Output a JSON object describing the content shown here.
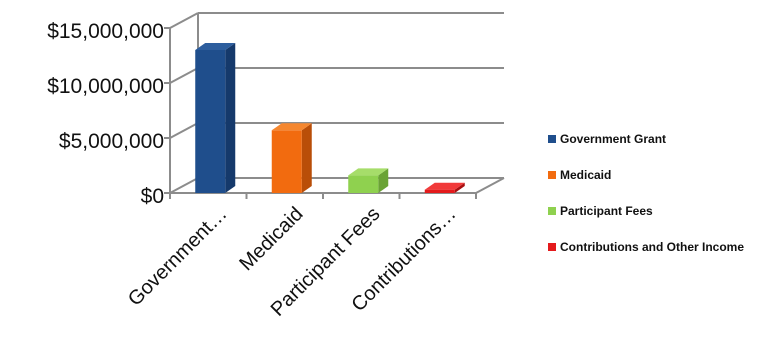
{
  "chart_data": {
    "type": "bar",
    "title": "",
    "xlabel": "",
    "ylabel": "",
    "categories": [
      "Government…",
      "Medicaid",
      "Participant Fees",
      "Contributions…"
    ],
    "series_names": [
      "Government Grant",
      "Medicaid",
      "Participant Fees",
      "Contributions and Other Income"
    ],
    "values": [
      13000000,
      5700000,
      1600000,
      300000
    ],
    "y_ticks": [
      "$0",
      "$5,000,000",
      "$10,000,000",
      "$15,000,000"
    ],
    "ylim": [
      0,
      15000000
    ],
    "grid": true,
    "three_d": true,
    "legend_position": "right",
    "colors": {
      "front": [
        "#1F4E8C",
        "#F26B0F",
        "#8FD14F",
        "#E41A1C"
      ],
      "top": [
        "#2D5E9E",
        "#F5872F",
        "#A6DD6A",
        "#F13A3A"
      ],
      "side": [
        "#15396B",
        "#B94E08",
        "#6AA335",
        "#A80F10"
      ],
      "grid": "#8C8C8C"
    }
  }
}
